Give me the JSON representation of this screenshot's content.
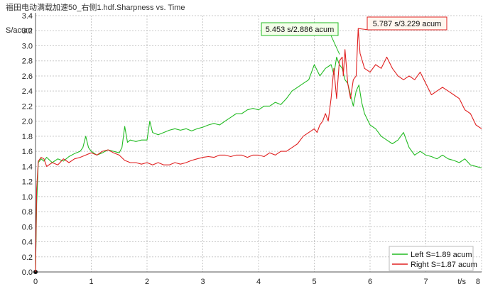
{
  "window": {
    "title": "福田电动满载加速50_右侧1.hdf.Sharpness vs. Time"
  },
  "chart_data": {
    "type": "line",
    "title": "福田电动满载加速50_右侧1.hdf.Sharpness vs. Time",
    "xlabel": "t/s",
    "ylabel": "S/acum",
    "xlim": [
      0,
      8
    ],
    "ylim": [
      0,
      3.4
    ],
    "x_ticks": [
      0,
      1,
      2,
      3,
      4,
      5,
      6,
      7,
      8
    ],
    "y_ticks": [
      0.0,
      0.2,
      0.4,
      0.6,
      0.8,
      1.0,
      1.2,
      1.4,
      1.6,
      1.8,
      2.0,
      2.2,
      2.4,
      2.6,
      2.8,
      3.0,
      3.2,
      3.4
    ],
    "grid": true,
    "legend_position": "bottom-right",
    "series": [
      {
        "name": "Left S=1.89 acum",
        "color": "#22bb22",
        "points": [
          [
            0.0,
            0.0
          ],
          [
            0.02,
            0.9
          ],
          [
            0.05,
            1.45
          ],
          [
            0.1,
            1.5
          ],
          [
            0.15,
            1.47
          ],
          [
            0.2,
            1.52
          ],
          [
            0.3,
            1.45
          ],
          [
            0.4,
            1.5
          ],
          [
            0.5,
            1.47
          ],
          [
            0.6,
            1.53
          ],
          [
            0.7,
            1.57
          ],
          [
            0.8,
            1.6
          ],
          [
            0.85,
            1.65
          ],
          [
            0.9,
            1.8
          ],
          [
            0.95,
            1.65
          ],
          [
            1.0,
            1.6
          ],
          [
            1.1,
            1.55
          ],
          [
            1.2,
            1.58
          ],
          [
            1.3,
            1.62
          ],
          [
            1.4,
            1.6
          ],
          [
            1.5,
            1.58
          ],
          [
            1.55,
            1.65
          ],
          [
            1.6,
            1.93
          ],
          [
            1.65,
            1.72
          ],
          [
            1.7,
            1.75
          ],
          [
            1.8,
            1.73
          ],
          [
            1.9,
            1.75
          ],
          [
            2.0,
            1.75
          ],
          [
            2.05,
            2.0
          ],
          [
            2.1,
            1.85
          ],
          [
            2.2,
            1.82
          ],
          [
            2.3,
            1.85
          ],
          [
            2.4,
            1.88
          ],
          [
            2.5,
            1.9
          ],
          [
            2.6,
            1.88
          ],
          [
            2.7,
            1.9
          ],
          [
            2.8,
            1.87
          ],
          [
            2.9,
            1.9
          ],
          [
            3.0,
            1.92
          ],
          [
            3.1,
            1.95
          ],
          [
            3.2,
            1.97
          ],
          [
            3.3,
            1.95
          ],
          [
            3.4,
            2.0
          ],
          [
            3.5,
            2.05
          ],
          [
            3.6,
            2.1
          ],
          [
            3.7,
            2.1
          ],
          [
            3.8,
            2.15
          ],
          [
            3.9,
            2.17
          ],
          [
            4.0,
            2.15
          ],
          [
            4.1,
            2.2
          ],
          [
            4.2,
            2.2
          ],
          [
            4.3,
            2.25
          ],
          [
            4.4,
            2.22
          ],
          [
            4.5,
            2.3
          ],
          [
            4.6,
            2.4
          ],
          [
            4.7,
            2.45
          ],
          [
            4.8,
            2.5
          ],
          [
            4.9,
            2.55
          ],
          [
            5.0,
            2.75
          ],
          [
            5.1,
            2.6
          ],
          [
            5.2,
            2.7
          ],
          [
            5.3,
            2.75
          ],
          [
            5.35,
            2.62
          ],
          [
            5.4,
            2.85
          ],
          [
            5.45,
            2.75
          ],
          [
            5.5,
            2.7
          ],
          [
            5.55,
            2.55
          ],
          [
            5.6,
            2.5
          ],
          [
            5.65,
            2.35
          ],
          [
            5.7,
            2.2
          ],
          [
            5.75,
            2.4
          ],
          [
            5.8,
            2.48
          ],
          [
            5.85,
            2.25
          ],
          [
            5.9,
            2.1
          ],
          [
            6.0,
            1.95
          ],
          [
            6.1,
            1.9
          ],
          [
            6.2,
            1.8
          ],
          [
            6.3,
            1.75
          ],
          [
            6.4,
            1.7
          ],
          [
            6.5,
            1.75
          ],
          [
            6.6,
            1.85
          ],
          [
            6.7,
            1.65
          ],
          [
            6.8,
            1.55
          ],
          [
            6.9,
            1.6
          ],
          [
            7.0,
            1.55
          ],
          [
            7.1,
            1.53
          ],
          [
            7.2,
            1.5
          ],
          [
            7.3,
            1.55
          ],
          [
            7.4,
            1.5
          ],
          [
            7.5,
            1.48
          ],
          [
            7.6,
            1.45
          ],
          [
            7.7,
            1.5
          ],
          [
            7.8,
            1.42
          ],
          [
            7.9,
            1.4
          ],
          [
            8.0,
            1.38
          ]
        ]
      },
      {
        "name": "Right S=1.87 acum",
        "color": "#e02020",
        "points": [
          [
            0.0,
            0.0
          ],
          [
            0.02,
            1.1
          ],
          [
            0.05,
            1.47
          ],
          [
            0.1,
            1.52
          ],
          [
            0.15,
            1.5
          ],
          [
            0.2,
            1.4
          ],
          [
            0.3,
            1.45
          ],
          [
            0.4,
            1.42
          ],
          [
            0.5,
            1.5
          ],
          [
            0.6,
            1.45
          ],
          [
            0.7,
            1.5
          ],
          [
            0.8,
            1.52
          ],
          [
            0.9,
            1.55
          ],
          [
            1.0,
            1.58
          ],
          [
            1.1,
            1.55
          ],
          [
            1.2,
            1.6
          ],
          [
            1.3,
            1.62
          ],
          [
            1.4,
            1.58
          ],
          [
            1.5,
            1.55
          ],
          [
            1.6,
            1.48
          ],
          [
            1.7,
            1.45
          ],
          [
            1.8,
            1.45
          ],
          [
            1.9,
            1.43
          ],
          [
            2.0,
            1.45
          ],
          [
            2.1,
            1.42
          ],
          [
            2.2,
            1.45
          ],
          [
            2.3,
            1.42
          ],
          [
            2.4,
            1.42
          ],
          [
            2.5,
            1.45
          ],
          [
            2.6,
            1.43
          ],
          [
            2.7,
            1.45
          ],
          [
            2.8,
            1.48
          ],
          [
            2.9,
            1.5
          ],
          [
            3.0,
            1.52
          ],
          [
            3.1,
            1.53
          ],
          [
            3.2,
            1.52
          ],
          [
            3.3,
            1.55
          ],
          [
            3.4,
            1.55
          ],
          [
            3.5,
            1.53
          ],
          [
            3.6,
            1.55
          ],
          [
            3.7,
            1.55
          ],
          [
            3.8,
            1.52
          ],
          [
            3.9,
            1.55
          ],
          [
            4.0,
            1.55
          ],
          [
            4.1,
            1.53
          ],
          [
            4.2,
            1.58
          ],
          [
            4.3,
            1.55
          ],
          [
            4.4,
            1.6
          ],
          [
            4.5,
            1.6
          ],
          [
            4.6,
            1.65
          ],
          [
            4.7,
            1.7
          ],
          [
            4.8,
            1.8
          ],
          [
            4.9,
            1.85
          ],
          [
            5.0,
            1.9
          ],
          [
            5.05,
            1.85
          ],
          [
            5.1,
            1.95
          ],
          [
            5.15,
            2.0
          ],
          [
            5.2,
            2.1
          ],
          [
            5.25,
            2.0
          ],
          [
            5.3,
            2.3
          ],
          [
            5.35,
            2.7
          ],
          [
            5.4,
            2.3
          ],
          [
            5.45,
            2.8
          ],
          [
            5.5,
            2.85
          ],
          [
            5.52,
            2.6
          ],
          [
            5.55,
            2.95
          ],
          [
            5.6,
            2.5
          ],
          [
            5.65,
            2.3
          ],
          [
            5.7,
            2.55
          ],
          [
            5.75,
            2.6
          ],
          [
            5.787,
            3.229
          ],
          [
            5.82,
            2.9
          ],
          [
            5.9,
            2.7
          ],
          [
            6.0,
            2.65
          ],
          [
            6.1,
            2.75
          ],
          [
            6.2,
            2.7
          ],
          [
            6.3,
            2.85
          ],
          [
            6.4,
            2.7
          ],
          [
            6.5,
            2.6
          ],
          [
            6.6,
            2.55
          ],
          [
            6.7,
            2.6
          ],
          [
            6.8,
            2.55
          ],
          [
            6.9,
            2.65
          ],
          [
            7.0,
            2.5
          ],
          [
            7.1,
            2.35
          ],
          [
            7.2,
            2.4
          ],
          [
            7.3,
            2.45
          ],
          [
            7.4,
            2.4
          ],
          [
            7.5,
            2.35
          ],
          [
            7.6,
            2.3
          ],
          [
            7.7,
            2.15
          ],
          [
            7.8,
            2.1
          ],
          [
            7.9,
            1.95
          ],
          [
            8.0,
            1.9
          ]
        ]
      }
    ],
    "annotations": [
      {
        "text": "5.453 s/2.886 acum",
        "x": 5.453,
        "y": 2.886,
        "series": 0
      },
      {
        "text": "5.787 s/3.229 acum",
        "x": 5.787,
        "y": 3.229,
        "series": 1
      }
    ]
  }
}
